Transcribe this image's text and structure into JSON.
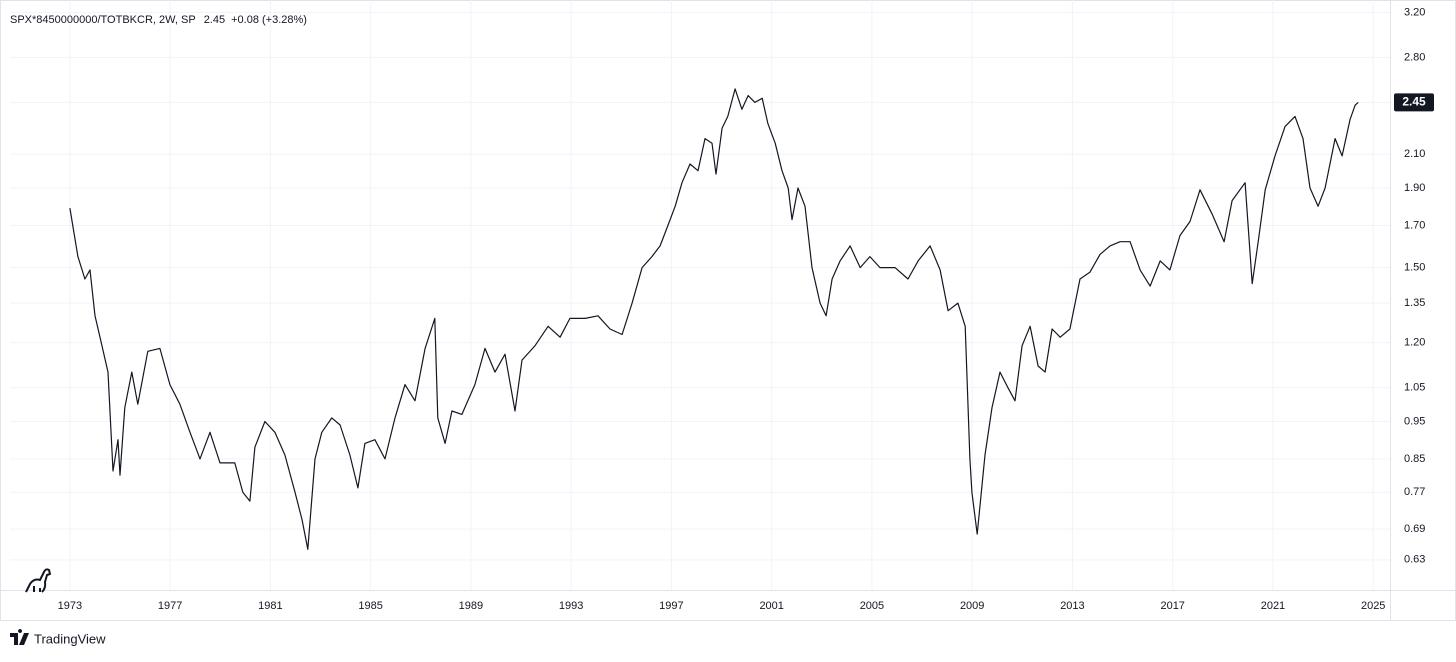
{
  "chart_data": {
    "type": "line",
    "title": "SPX*8450000000/TOTBKCR, 2W, SP",
    "last_value": 2.45,
    "change_label": "+0.08 (+3.28%)",
    "brand": "TradingView",
    "color": "#131722",
    "log_scale": true,
    "grid": true,
    "xlim": [
      1970.61,
      2025.67
    ],
    "xticks": [
      1973,
      1977,
      1981,
      1985,
      1989,
      1993,
      1997,
      2001,
      2005,
      2009,
      2013,
      2017,
      2021,
      2025
    ],
    "ylim": [
      0.576,
      3.32
    ],
    "yticks": [
      {
        "value": 3.2,
        "label": "3.20"
      },
      {
        "value": 2.8,
        "label": "2.80"
      },
      2.45,
      {
        "value": 2.1,
        "label": "2.10"
      },
      {
        "value": 1.9,
        "label": "1.90"
      },
      {
        "value": 1.7,
        "label": "1.70"
      },
      {
        "value": 1.5,
        "label": "1.50"
      },
      1.35,
      {
        "value": 1.2,
        "label": "1.20"
      },
      1.05,
      0.95,
      0.85,
      0.77,
      0.69,
      0.63
    ],
    "x": [
      1973.0,
      1973.32,
      1973.6,
      1973.8,
      1974.0,
      1974.2,
      1974.52,
      1974.72,
      1974.92,
      1975.0,
      1975.19,
      1975.47,
      1975.71,
      1976.11,
      1976.59,
      1976.99,
      1977.39,
      1977.79,
      1978.19,
      1978.59,
      1978.99,
      1979.58,
      1979.9,
      1980.18,
      1980.38,
      1980.78,
      1981.18,
      1981.58,
      1981.98,
      1982.26,
      1982.49,
      1982.78,
      1983.05,
      1983.45,
      1983.78,
      1984.17,
      1984.49,
      1984.77,
      1985.17,
      1985.57,
      1985.97,
      1986.37,
      1986.77,
      1987.17,
      1987.56,
      1987.68,
      1987.97,
      1988.24,
      1988.64,
      1989.16,
      1989.56,
      1989.96,
      1990.36,
      1990.76,
      1991.04,
      1991.56,
      1992.08,
      1992.56,
      1992.95,
      1993.56,
      1994.07,
      1994.55,
      1995.03,
      1995.43,
      1995.83,
      1996.22,
      1996.55,
      1996.86,
      1997.15,
      1997.42,
      1997.74,
      1998.06,
      1998.34,
      1998.62,
      1998.78,
      1999.02,
      1999.25,
      1999.54,
      1999.81,
      2000.06,
      2000.33,
      2000.62,
      2000.85,
      2001.14,
      2001.41,
      2001.66,
      2001.81,
      2002.05,
      2002.33,
      2002.61,
      2002.93,
      2003.17,
      2003.41,
      2003.73,
      2004.13,
      2004.53,
      2004.92,
      2005.32,
      2005.92,
      2006.44,
      2006.84,
      2007.32,
      2007.72,
      2008.04,
      2008.43,
      2008.72,
      2008.91,
      2008.99,
      2009.2,
      2009.51,
      2009.79,
      2010.11,
      2010.43,
      2010.71,
      2010.99,
      2011.31,
      2011.63,
      2011.91,
      2012.19,
      2012.51,
      2012.9,
      2013.3,
      2013.7,
      2014.1,
      2014.5,
      2014.9,
      2015.3,
      2015.7,
      2016.1,
      2016.5,
      2016.89,
      2017.29,
      2017.69,
      2018.09,
      2018.57,
      2019.05,
      2019.37,
      2019.89,
      2020.17,
      2020.41,
      2020.69,
      2021.08,
      2021.48,
      2021.88,
      2022.2,
      2022.48,
      2022.8,
      2023.08,
      2023.48,
      2023.76,
      2024.08,
      2024.28,
      2024.4
    ],
    "values": [
      1.79,
      1.55,
      1.45,
      1.49,
      1.3,
      1.22,
      1.1,
      0.82,
      0.9,
      0.81,
      0.99,
      1.1,
      1.0,
      1.17,
      1.18,
      1.06,
      1.0,
      0.92,
      0.85,
      0.92,
      0.84,
      0.84,
      0.77,
      0.75,
      0.88,
      0.95,
      0.92,
      0.86,
      0.77,
      0.71,
      0.65,
      0.85,
      0.92,
      0.96,
      0.94,
      0.86,
      0.78,
      0.89,
      0.9,
      0.85,
      0.96,
      1.06,
      1.01,
      1.18,
      1.29,
      0.96,
      0.89,
      0.98,
      0.97,
      1.06,
      1.18,
      1.1,
      1.16,
      0.98,
      1.14,
      1.19,
      1.26,
      1.22,
      1.29,
      1.29,
      1.3,
      1.25,
      1.23,
      1.35,
      1.5,
      1.55,
      1.6,
      1.7,
      1.8,
      1.93,
      2.04,
      2.0,
      2.2,
      2.17,
      1.98,
      2.27,
      2.35,
      2.55,
      2.4,
      2.5,
      2.45,
      2.48,
      2.3,
      2.17,
      2.0,
      1.9,
      1.73,
      1.9,
      1.8,
      1.5,
      1.35,
      1.3,
      1.45,
      1.53,
      1.6,
      1.5,
      1.55,
      1.5,
      1.5,
      1.45,
      1.53,
      1.6,
      1.49,
      1.32,
      1.35,
      1.26,
      0.85,
      0.77,
      0.68,
      0.86,
      0.99,
      1.1,
      1.05,
      1.01,
      1.19,
      1.26,
      1.12,
      1.1,
      1.25,
      1.22,
      1.25,
      1.45,
      1.48,
      1.56,
      1.6,
      1.62,
      1.62,
      1.49,
      1.42,
      1.53,
      1.49,
      1.65,
      1.72,
      1.89,
      1.76,
      1.62,
      1.83,
      1.93,
      1.43,
      1.62,
      1.89,
      2.09,
      2.28,
      2.35,
      2.2,
      1.9,
      1.8,
      1.9,
      2.2,
      2.09,
      2.33,
      2.43,
      2.45
    ]
  }
}
